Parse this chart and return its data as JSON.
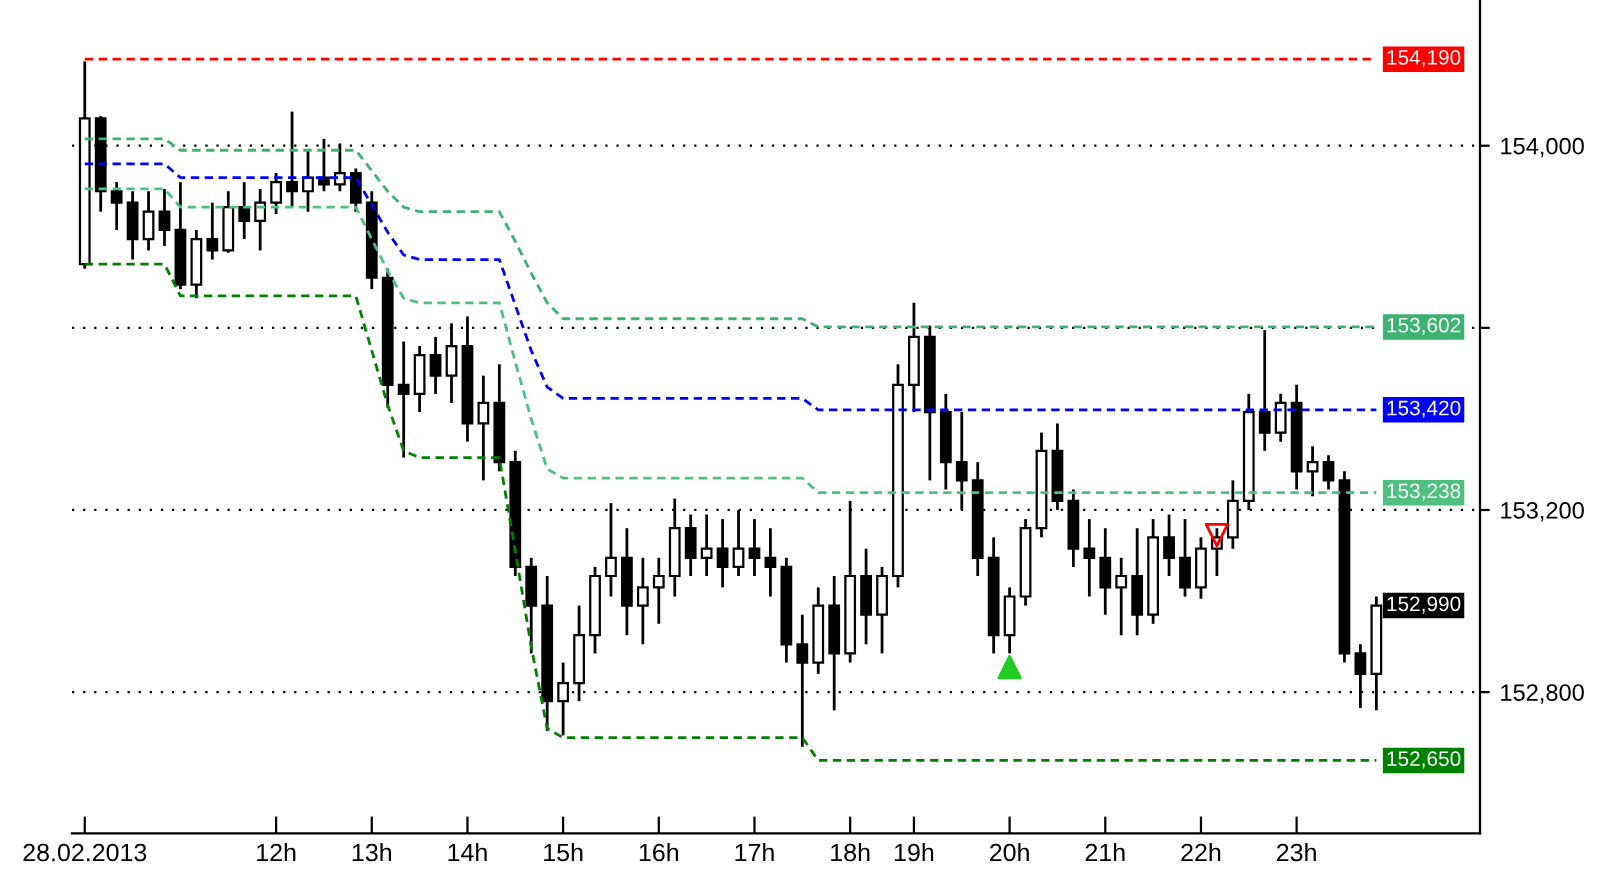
{
  "chart_data": {
    "type": "candlestick",
    "categories": [
      "28.02.2013",
      null,
      null,
      null,
      null,
      null,
      null,
      null,
      null,
      null,
      null,
      null,
      "12h",
      null,
      null,
      null,
      null,
      null,
      "13h",
      null,
      null,
      null,
      null,
      null,
      "14h",
      null,
      null,
      null,
      null,
      null,
      "15h",
      null,
      null,
      null,
      null,
      null,
      "16h",
      null,
      null,
      null,
      null,
      null,
      "17h",
      null,
      null,
      null,
      null,
      null,
      "18h",
      null,
      null,
      null,
      "19h",
      null,
      null,
      null,
      null,
      null,
      "20h",
      null,
      null,
      null,
      null,
      null,
      "21h",
      null,
      null,
      null,
      null,
      null,
      "22h",
      null,
      null,
      null,
      null,
      null,
      "23h",
      null,
      null,
      null,
      null,
      null
    ],
    "ohlc": [
      [
        153740,
        154185,
        153730,
        154060
      ],
      [
        154060,
        154065,
        153855,
        153900
      ],
      [
        153900,
        153920,
        153815,
        153875
      ],
      [
        153875,
        153900,
        153750,
        153795
      ],
      [
        153795,
        153900,
        153770,
        153855
      ],
      [
        153855,
        153905,
        153780,
        153815
      ],
      [
        153815,
        153920,
        153685,
        153695
      ],
      [
        153695,
        153815,
        153665,
        153795
      ],
      [
        153795,
        153875,
        153750,
        153770
      ],
      [
        153770,
        153900,
        153765,
        153865
      ],
      [
        153865,
        153920,
        153795,
        153835
      ],
      [
        153835,
        153905,
        153770,
        153875
      ],
      [
        153875,
        153940,
        153850,
        153920
      ],
      [
        153920,
        154075,
        153865,
        153900
      ],
      [
        153900,
        153990,
        153855,
        153930
      ],
      [
        153930,
        154015,
        153900,
        153915
      ],
      [
        153915,
        154005,
        153900,
        153940
      ],
      [
        153940,
        153950,
        153855,
        153875
      ],
      [
        153875,
        153900,
        153685,
        153710
      ],
      [
        153710,
        153730,
        153425,
        153475
      ],
      [
        153475,
        153570,
        153315,
        153455
      ],
      [
        153455,
        153560,
        153415,
        153540
      ],
      [
        153540,
        153580,
        153455,
        153495
      ],
      [
        153495,
        153610,
        153435,
        153560
      ],
      [
        153560,
        153625,
        153350,
        153390
      ],
      [
        153390,
        153495,
        153265,
        153435
      ],
      [
        153435,
        153520,
        153285,
        153305
      ],
      [
        153305,
        153330,
        153055,
        153075
      ],
      [
        153075,
        153095,
        152885,
        152990
      ],
      [
        152990,
        153055,
        152715,
        152780
      ],
      [
        152780,
        152865,
        152705,
        152820
      ],
      [
        152820,
        152990,
        152780,
        152925
      ],
      [
        152925,
        153075,
        152885,
        153055
      ],
      [
        153055,
        153215,
        153010,
        153095
      ],
      [
        153095,
        153160,
        152925,
        152990
      ],
      [
        152990,
        153095,
        152905,
        153030
      ],
      [
        153030,
        153095,
        152950,
        153055
      ],
      [
        153055,
        153225,
        153010,
        153160
      ],
      [
        153160,
        153190,
        153055,
        153095
      ],
      [
        153095,
        153190,
        153055,
        153115
      ],
      [
        153115,
        153180,
        153030,
        153075
      ],
      [
        153075,
        153200,
        153055,
        153115
      ],
      [
        153115,
        153180,
        153055,
        153095
      ],
      [
        153095,
        153160,
        153010,
        153075
      ],
      [
        153075,
        153095,
        152865,
        152905
      ],
      [
        152905,
        152970,
        152680,
        152865
      ],
      [
        152865,
        153030,
        152840,
        152990
      ],
      [
        152990,
        153055,
        152760,
        152885
      ],
      [
        152885,
        153220,
        152865,
        153055
      ],
      [
        153055,
        153115,
        152905,
        152970
      ],
      [
        152970,
        153075,
        152885,
        153055
      ],
      [
        153055,
        153520,
        153030,
        153475
      ],
      [
        153475,
        153655,
        153415,
        153580
      ],
      [
        153580,
        153605,
        153265,
        153415
      ],
      [
        153415,
        153455,
        153245,
        153305
      ],
      [
        153305,
        153415,
        153200,
        153265
      ],
      [
        153265,
        153305,
        153055,
        153095
      ],
      [
        153095,
        153140,
        152885,
        152925
      ],
      [
        152925,
        153030,
        152885,
        153010
      ],
      [
        153010,
        153180,
        152990,
        153160
      ],
      [
        153160,
        153370,
        153140,
        153330
      ],
      [
        153330,
        153390,
        153200,
        153220
      ],
      [
        153220,
        153245,
        153075,
        153115
      ],
      [
        153115,
        153180,
        153010,
        153095
      ],
      [
        153095,
        153160,
        152970,
        153030
      ],
      [
        153030,
        153095,
        152925,
        153055
      ],
      [
        153055,
        153160,
        152925,
        152970
      ],
      [
        152970,
        153180,
        152950,
        153140
      ],
      [
        153140,
        153190,
        153055,
        153095
      ],
      [
        153095,
        153180,
        153010,
        153030
      ],
      [
        153030,
        153140,
        153005,
        153115
      ],
      [
        153115,
        153160,
        153055,
        153140
      ],
      [
        153140,
        153265,
        153115,
        153220
      ],
      [
        153220,
        153455,
        153200,
        153415
      ],
      [
        153415,
        153595,
        153330,
        153370
      ],
      [
        153370,
        153455,
        153350,
        153435
      ],
      [
        153435,
        153475,
        153245,
        153285
      ],
      [
        153285,
        153340,
        153230,
        153305
      ],
      [
        153305,
        153320,
        153245,
        153265
      ],
      [
        153265,
        153285,
        152865,
        152885
      ],
      [
        152885,
        152905,
        152765,
        152840
      ],
      [
        152840,
        153010,
        152760,
        152990
      ]
    ],
    "value_labels": [
      null,
      null,
      null,
      null,
      null,
      null,
      null,
      null,
      null,
      null,
      null,
      null,
      null,
      null,
      null,
      null,
      null,
      null,
      null,
      null,
      null,
      null,
      null,
      null,
      null,
      null,
      null,
      null,
      null,
      null,
      null,
      null,
      null,
      null,
      null,
      null,
      null,
      null,
      null,
      null,
      null,
      null,
      null,
      null,
      null,
      null,
      null,
      null,
      null,
      null,
      null,
      null,
      null,
      null,
      null,
      null,
      null,
      null,
      null,
      null,
      null,
      null,
      null,
      null,
      null,
      null,
      null,
      null,
      null,
      null,
      null,
      null,
      null,
      null,
      null,
      null,
      null,
      null,
      null,
      null,
      null,
      "152,990"
    ],
    "series": [
      {
        "type": "line",
        "color": "#ff0000",
        "line_style": "dashed",
        "values": [
          154190,
          154190,
          154190,
          154190,
          154190,
          154190,
          154190,
          154190,
          154190,
          154190,
          154190,
          154190,
          154190,
          154190,
          154190,
          154190,
          154190,
          154190,
          154190,
          154190,
          154190,
          154190,
          154190,
          154190,
          154190,
          154190,
          154190,
          154190,
          154190,
          154190,
          154190,
          154190,
          154190,
          154190,
          154190,
          154190,
          154190,
          154190,
          154190,
          154190,
          154190,
          154190,
          154190,
          154190,
          154190,
          154190,
          154190,
          154190,
          154190,
          154190,
          154190,
          154190,
          154190,
          154190,
          154190,
          154190,
          154190,
          154190,
          154190,
          154190,
          154190,
          154190,
          154190,
          154190,
          154190,
          154190,
          154190,
          154190,
          154190,
          154190,
          154190,
          154190,
          154190,
          154190,
          154190,
          154190,
          154190,
          154190,
          154190,
          154190,
          154190,
          154190
        ],
        "value_labels": [
          null,
          null,
          null,
          null,
          null,
          null,
          null,
          null,
          null,
          null,
          null,
          null,
          null,
          null,
          null,
          null,
          null,
          null,
          null,
          null,
          null,
          null,
          null,
          null,
          null,
          null,
          null,
          null,
          null,
          null,
          null,
          null,
          null,
          null,
          null,
          null,
          null,
          null,
          null,
          null,
          null,
          null,
          null,
          null,
          null,
          null,
          null,
          null,
          null,
          null,
          null,
          null,
          null,
          null,
          null,
          null,
          null,
          null,
          null,
          null,
          null,
          null,
          null,
          null,
          null,
          null,
          null,
          null,
          null,
          null,
          null,
          null,
          null,
          null,
          null,
          null,
          null,
          null,
          null,
          null,
          null,
          "154,190"
        ]
      },
      {
        "type": "line",
        "color": "#3cb371",
        "line_style": "dashed",
        "values": [
          154015,
          154015,
          154015,
          154015,
          154015,
          154015,
          153990,
          153990,
          153990,
          153990,
          153990,
          153990,
          153990,
          153990,
          153990,
          153990,
          153990,
          153990,
          153945,
          153900,
          153865,
          153855,
          153855,
          153855,
          153855,
          153855,
          153855,
          153790,
          153720,
          153655,
          153620,
          153620,
          153620,
          153620,
          153620,
          153620,
          153620,
          153620,
          153620,
          153620,
          153620,
          153620,
          153620,
          153620,
          153620,
          153620,
          153602,
          153602,
          153602,
          153602,
          153602,
          153602,
          153602,
          153602,
          153602,
          153602,
          153602,
          153602,
          153602,
          153602,
          153602,
          153602,
          153602,
          153602,
          153602,
          153602,
          153602,
          153602,
          153602,
          153602,
          153602,
          153602,
          153602,
          153602,
          153602,
          153602,
          153602,
          153602,
          153602,
          153602,
          153602,
          153602
        ],
        "value_labels": [
          null,
          null,
          null,
          null,
          null,
          null,
          null,
          null,
          null,
          null,
          null,
          null,
          null,
          null,
          null,
          null,
          null,
          null,
          null,
          null,
          null,
          null,
          null,
          null,
          null,
          null,
          null,
          null,
          null,
          null,
          null,
          null,
          null,
          null,
          null,
          null,
          null,
          null,
          null,
          null,
          null,
          null,
          null,
          null,
          null,
          null,
          null,
          null,
          null,
          null,
          null,
          null,
          null,
          null,
          null,
          null,
          null,
          null,
          null,
          null,
          null,
          null,
          null,
          null,
          null,
          null,
          null,
          null,
          null,
          null,
          null,
          null,
          null,
          null,
          null,
          null,
          null,
          null,
          null,
          null,
          null,
          "153,602"
        ]
      },
      {
        "type": "line",
        "color": "#0000ff",
        "line_style": "dashed",
        "values": [
          153960,
          153960,
          153960,
          153960,
          153960,
          153960,
          153930,
          153930,
          153930,
          153930,
          153930,
          153930,
          153930,
          153930,
          153930,
          153930,
          153930,
          153930,
          153870,
          153810,
          153760,
          153750,
          153750,
          153750,
          153750,
          153750,
          153750,
          153650,
          153550,
          153470,
          153445,
          153445,
          153445,
          153445,
          153445,
          153445,
          153445,
          153445,
          153445,
          153445,
          153445,
          153445,
          153445,
          153445,
          153445,
          153445,
          153420,
          153420,
          153420,
          153420,
          153420,
          153420,
          153420,
          153420,
          153420,
          153420,
          153420,
          153420,
          153420,
          153420,
          153420,
          153420,
          153420,
          153420,
          153420,
          153420,
          153420,
          153420,
          153420,
          153420,
          153420,
          153420,
          153420,
          153420,
          153420,
          153420,
          153420,
          153420,
          153420,
          153420,
          153420,
          153420
        ],
        "value_labels": [
          null,
          null,
          null,
          null,
          null,
          null,
          null,
          null,
          null,
          null,
          null,
          null,
          null,
          null,
          null,
          null,
          null,
          null,
          null,
          null,
          null,
          null,
          null,
          null,
          null,
          null,
          null,
          null,
          null,
          null,
          null,
          null,
          null,
          null,
          null,
          null,
          null,
          null,
          null,
          null,
          null,
          null,
          null,
          null,
          null,
          null,
          null,
          null,
          null,
          null,
          null,
          null,
          null,
          null,
          null,
          null,
          null,
          null,
          null,
          null,
          null,
          null,
          null,
          null,
          null,
          null,
          null,
          null,
          null,
          null,
          null,
          null,
          null,
          null,
          null,
          null,
          null,
          null,
          null,
          null,
          null,
          "153,420"
        ]
      },
      {
        "type": "line",
        "color": "#50c080",
        "line_style": "dashed",
        "values": [
          153905,
          153905,
          153905,
          153905,
          153905,
          153905,
          153865,
          153865,
          153865,
          153865,
          153865,
          153865,
          153865,
          153865,
          153865,
          153865,
          153865,
          153865,
          153795,
          153725,
          153665,
          153655,
          153655,
          153655,
          153655,
          153655,
          153655,
          153525,
          153400,
          153290,
          153270,
          153270,
          153270,
          153270,
          153270,
          153270,
          153270,
          153270,
          153270,
          153270,
          153270,
          153270,
          153270,
          153270,
          153270,
          153270,
          153238,
          153238,
          153238,
          153238,
          153238,
          153238,
          153238,
          153238,
          153238,
          153238,
          153238,
          153238,
          153238,
          153238,
          153238,
          153238,
          153238,
          153238,
          153238,
          153238,
          153238,
          153238,
          153238,
          153238,
          153238,
          153238,
          153238,
          153238,
          153238,
          153238,
          153238,
          153238,
          153238,
          153238,
          153238,
          153238
        ],
        "value_labels": [
          null,
          null,
          null,
          null,
          null,
          null,
          null,
          null,
          null,
          null,
          null,
          null,
          null,
          null,
          null,
          null,
          null,
          null,
          null,
          null,
          null,
          null,
          null,
          null,
          null,
          null,
          null,
          null,
          null,
          null,
          null,
          null,
          null,
          null,
          null,
          null,
          null,
          null,
          null,
          null,
          null,
          null,
          null,
          null,
          null,
          null,
          null,
          null,
          null,
          null,
          null,
          null,
          null,
          null,
          null,
          null,
          null,
          null,
          null,
          null,
          null,
          null,
          null,
          null,
          null,
          null,
          null,
          null,
          null,
          null,
          null,
          null,
          null,
          null,
          null,
          null,
          null,
          null,
          null,
          null,
          null,
          "153,238"
        ]
      },
      {
        "type": "line",
        "color": "#008000",
        "line_style": "dashed",
        "values": [
          153740,
          153740,
          153740,
          153740,
          153740,
          153740,
          153670,
          153670,
          153670,
          153670,
          153670,
          153670,
          153670,
          153670,
          153670,
          153670,
          153670,
          153670,
          153550,
          153430,
          153330,
          153315,
          153315,
          153315,
          153315,
          153315,
          153315,
          153110,
          152900,
          152720,
          152700,
          152700,
          152700,
          152700,
          152700,
          152700,
          152700,
          152700,
          152700,
          152700,
          152700,
          152700,
          152700,
          152700,
          152700,
          152700,
          152650,
          152650,
          152650,
          152650,
          152650,
          152650,
          152650,
          152650,
          152650,
          152650,
          152650,
          152650,
          152650,
          152650,
          152650,
          152650,
          152650,
          152650,
          152650,
          152650,
          152650,
          152650,
          152650,
          152650,
          152650,
          152650,
          152650,
          152650,
          152650,
          152650,
          152650,
          152650,
          152650,
          152650,
          152650,
          152650
        ],
        "value_labels": [
          null,
          null,
          null,
          null,
          null,
          null,
          null,
          null,
          null,
          null,
          null,
          null,
          null,
          null,
          null,
          null,
          null,
          null,
          null,
          null,
          null,
          null,
          null,
          null,
          null,
          null,
          null,
          null,
          null,
          null,
          null,
          null,
          null,
          null,
          null,
          null,
          null,
          null,
          null,
          null,
          null,
          null,
          null,
          null,
          null,
          null,
          null,
          null,
          null,
          null,
          null,
          null,
          null,
          null,
          null,
          null,
          null,
          null,
          null,
          null,
          null,
          null,
          null,
          null,
          null,
          null,
          null,
          null,
          null,
          null,
          null,
          null,
          null,
          null,
          null,
          null,
          null,
          null,
          null,
          null,
          null,
          "152,650"
        ]
      },
      {
        "type": "scatter",
        "color": "#22cc22",
        "marker": "triangle",
        "values": [
          null,
          null,
          null,
          null,
          null,
          null,
          null,
          null,
          null,
          null,
          null,
          null,
          null,
          null,
          null,
          null,
          null,
          null,
          null,
          null,
          null,
          null,
          null,
          null,
          null,
          null,
          null,
          null,
          null,
          null,
          null,
          null,
          null,
          null,
          null,
          null,
          null,
          null,
          null,
          null,
          null,
          null,
          null,
          null,
          null,
          null,
          null,
          null,
          null,
          null,
          null,
          null,
          null,
          null,
          null,
          null,
          null,
          null,
          152855,
          null,
          null,
          null,
          null,
          null,
          null,
          null,
          null,
          null,
          null,
          null,
          null,
          null,
          null,
          null,
          null,
          null,
          null,
          null,
          null,
          null,
          null,
          null
        ]
      },
      {
        "type": "scatter",
        "color": "#ff0000",
        "marker": "triangle_down",
        "values": [
          null,
          null,
          null,
          null,
          null,
          null,
          null,
          null,
          null,
          null,
          null,
          null,
          null,
          null,
          null,
          null,
          null,
          null,
          null,
          null,
          null,
          null,
          null,
          null,
          null,
          null,
          null,
          null,
          null,
          null,
          null,
          null,
          null,
          null,
          null,
          null,
          null,
          null,
          null,
          null,
          null,
          null,
          null,
          null,
          null,
          null,
          null,
          null,
          null,
          null,
          null,
          null,
          null,
          null,
          null,
          null,
          null,
          null,
          null,
          null,
          null,
          null,
          null,
          null,
          null,
          null,
          null,
          null,
          null,
          null,
          null,
          153145,
          null,
          null,
          null,
          null,
          null,
          null,
          null,
          null,
          null,
          null
        ]
      }
    ],
    "ylim": [
      152490,
      154320
    ],
    "yticks": [
      {
        "value": 152800,
        "label": "152,800"
      },
      {
        "value": 153200,
        "label": "153,200"
      },
      {
        "value": 153600,
        "label": null
      },
      {
        "value": 154000,
        "label": "154,000"
      }
    ],
    "grid": "y"
  }
}
